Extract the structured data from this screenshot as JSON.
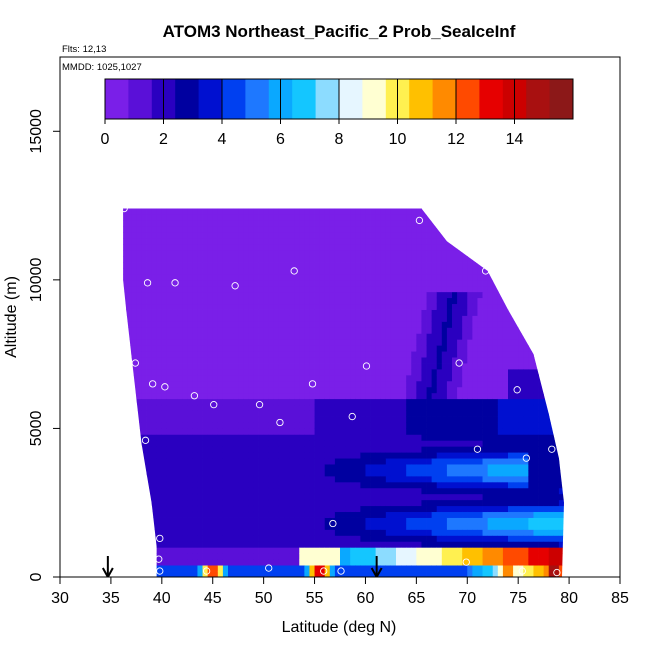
{
  "chart_data": {
    "type": "heatmap",
    "title": "ATOM3 Northeast_Pacific_2 Prob_SeaIceInf",
    "flights_label": "Flts: 12,13",
    "dates_label": "MMDD: 1025,1027",
    "xlabel": "Latitude (deg N)",
    "ylabel": "Altitude (m)",
    "xlim": [
      30,
      85
    ],
    "ylim": [
      0,
      17500
    ],
    "x_ticks": [
      "30",
      "35",
      "40",
      "45",
      "50",
      "55",
      "60",
      "65",
      "70",
      "75",
      "80",
      "85"
    ],
    "y_ticks": [
      "0",
      "5000",
      "10000",
      "15000"
    ],
    "colorbar": {
      "range": [
        0,
        16
      ],
      "ticks": [
        "0",
        "2",
        "4",
        "6",
        "8",
        "10",
        "12",
        "14"
      ],
      "colors": [
        "#7a1fe8",
        "#5a10d8",
        "#2a00c0",
        "#0000a0",
        "#0010d0",
        "#0040f0",
        "#1e78ff",
        "#0aa8ff",
        "#14c6ff",
        "#8cdcff",
        "#e6f6ff",
        "#ffffd2",
        "#fff050",
        "#ffc000",
        "#ff8a00",
        "#ff4a00",
        "#e60000",
        "#cc0000",
        "#a81010",
        "#8c1818"
      ]
    },
    "outline": [
      [
        36.2,
        12400
      ],
      [
        65.5,
        12400
      ],
      [
        68,
        11300
      ],
      [
        72,
        10300
      ],
      [
        74,
        9000
      ],
      [
        76.5,
        7500
      ],
      [
        78,
        5500
      ],
      [
        79,
        4000
      ],
      [
        79.5,
        2500
      ],
      [
        79.3,
        0
      ],
      [
        39.5,
        0
      ],
      [
        39.5,
        1000
      ],
      [
        39,
        2500
      ],
      [
        38.5,
        3500
      ],
      [
        38,
        4500
      ],
      [
        37.5,
        6000
      ],
      [
        37,
        7500
      ],
      [
        36.5,
        9000
      ],
      [
        36.2,
        10000
      ]
    ],
    "circles": [
      [
        36.3,
        12400
      ],
      [
        65.3,
        12000
      ],
      [
        71.8,
        10300
      ],
      [
        53,
        10300
      ],
      [
        38.6,
        9900
      ],
      [
        41.3,
        9900
      ],
      [
        47.2,
        9800
      ],
      [
        77.1,
        7400
      ],
      [
        69.2,
        7200
      ],
      [
        37.4,
        7200
      ],
      [
        60.1,
        7100
      ],
      [
        39.1,
        6500
      ],
      [
        40.3,
        6400
      ],
      [
        54.8,
        6500
      ],
      [
        74.9,
        6300
      ],
      [
        43.2,
        6100
      ],
      [
        45.1,
        5800
      ],
      [
        49.6,
        5800
      ],
      [
        58.7,
        5400
      ],
      [
        51.6,
        5200
      ],
      [
        38.4,
        4600
      ],
      [
        71,
        4300
      ],
      [
        78.3,
        4300
      ],
      [
        75.8,
        4000
      ],
      [
        79.5,
        3800
      ],
      [
        56.8,
        1800
      ],
      [
        39.7,
        600
      ],
      [
        39.8,
        1300
      ],
      [
        69.9,
        500
      ],
      [
        39.8,
        200
      ],
      [
        44.4,
        200
      ],
      [
        50.5,
        300
      ],
      [
        55.9,
        200
      ],
      [
        57.6,
        200
      ],
      [
        75.4,
        200
      ],
      [
        78.8,
        150
      ]
    ],
    "arrows": [
      34.7,
      61.1
    ],
    "grid": false
  }
}
